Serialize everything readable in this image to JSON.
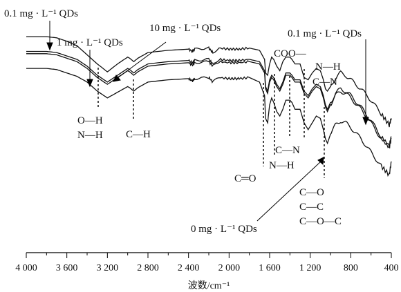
{
  "chart_data": {
    "type": "line",
    "xlabel": "波数/cm⁻¹",
    "xlim": [
      4000,
      400
    ],
    "x_ticks": [
      "4 000",
      "3 600",
      "3 200",
      "2 800",
      "2 400",
      "2 000",
      "1 600",
      "1 200",
      "800",
      "400"
    ],
    "series": [
      {
        "name": "0.1 mg · L⁻¹ QDs",
        "x": [
          4000,
          3900,
          3800,
          3700,
          3600,
          3500,
          3400,
          3300,
          3200,
          3100,
          3000,
          2980,
          2940,
          2900,
          2800,
          2600,
          2400,
          2360,
          2340,
          2200,
          2160,
          2100,
          2000,
          1950,
          1900,
          1800,
          1700,
          1650,
          1640,
          1620,
          1600,
          1580,
          1560,
          1530,
          1500,
          1470,
          1440,
          1400,
          1380,
          1350,
          1300,
          1260,
          1220,
          1180,
          1140,
          1100,
          1070,
          1050,
          1030,
          1000,
          950,
          900,
          850,
          800,
          700,
          600,
          500,
          420,
          400
        ],
        "y": [
          76,
          76,
          76,
          75.5,
          74,
          72,
          68,
          64,
          60.5,
          64,
          67,
          66.5,
          65,
          66.5,
          69,
          70,
          70.5,
          69.5,
          70.5,
          71,
          69,
          71,
          70.5,
          70.5,
          70.5,
          71,
          70,
          66,
          60,
          59,
          64,
          67,
          66,
          63,
          61,
          65,
          67,
          67,
          66,
          64,
          64,
          58,
          57,
          60,
          62,
          61,
          57,
          53,
          52,
          54,
          58,
          60,
          59,
          57,
          53,
          48,
          42,
          37,
          40
        ]
      },
      {
        "name": "1 mg · L⁻¹ QDs",
        "x": [
          4000,
          3900,
          3800,
          3700,
          3600,
          3500,
          3400,
          3300,
          3200,
          3100,
          3000,
          2980,
          2940,
          2900,
          2800,
          2600,
          2400,
          2360,
          2340,
          2200,
          2160,
          2100,
          2000,
          1950,
          1900,
          1800,
          1700,
          1650,
          1640,
          1620,
          1600,
          1580,
          1560,
          1530,
          1500,
          1470,
          1440,
          1400,
          1380,
          1350,
          1300,
          1260,
          1220,
          1180,
          1140,
          1100,
          1070,
          1050,
          1030,
          1000,
          950,
          900,
          850,
          800,
          700,
          600,
          500,
          420,
          400
        ],
        "y": [
          69.5,
          69.5,
          69.5,
          69,
          67.5,
          66,
          63,
          59,
          56,
          59,
          62,
          61.5,
          60,
          61.5,
          64,
          65,
          65.5,
          64.5,
          65.5,
          66,
          64,
          66,
          65.5,
          65.5,
          65.5,
          66,
          65,
          61,
          54,
          52,
          57,
          59,
          58,
          55,
          53,
          56,
          60,
          60,
          59,
          57,
          57,
          52,
          50,
          53,
          55,
          54,
          50,
          46,
          44,
          47,
          51,
          53,
          52,
          50,
          45,
          39,
          32,
          28,
          32
        ]
      },
      {
        "name": "10 mg · L⁻¹ QDs",
        "x": [
          4000,
          3900,
          3800,
          3700,
          3600,
          3500,
          3400,
          3300,
          3200,
          3100,
          3000,
          2980,
          2940,
          2900,
          2800,
          2600,
          2400,
          2360,
          2340,
          2200,
          2160,
          2100,
          2000,
          1950,
          1900,
          1800,
          1700,
          1650,
          1640,
          1620,
          1600,
          1580,
          1560,
          1530,
          1500,
          1470,
          1440,
          1400,
          1380,
          1350,
          1300,
          1260,
          1220,
          1180,
          1140,
          1100,
          1070,
          1050,
          1030,
          1000,
          950,
          900,
          850,
          800,
          700,
          600,
          500,
          420,
          400
        ],
        "y": [
          68.5,
          68.5,
          68.5,
          68,
          66.5,
          65,
          62,
          58,
          55,
          58,
          61,
          60.5,
          59,
          60.5,
          63,
          64,
          64.5,
          63.5,
          64.5,
          65,
          63,
          65,
          64.5,
          64.5,
          64.5,
          65,
          64,
          60,
          53,
          51,
          56,
          58,
          57,
          54,
          52,
          55,
          59,
          59,
          58,
          56,
          56,
          51,
          49,
          52,
          54,
          53,
          49,
          45,
          43,
          46,
          50,
          52,
          51,
          49,
          44,
          38,
          31,
          27,
          31
        ]
      },
      {
        "name": "0 mg · L⁻¹ QDs",
        "x": [
          4000,
          3900,
          3800,
          3700,
          3600,
          3500,
          3400,
          3300,
          3200,
          3100,
          3000,
          2980,
          2940,
          2900,
          2800,
          2600,
          2400,
          2360,
          2340,
          2200,
          2160,
          2100,
          2000,
          1950,
          1900,
          1800,
          1700,
          1650,
          1640,
          1620,
          1600,
          1580,
          1560,
          1530,
          1500,
          1470,
          1440,
          1400,
          1380,
          1350,
          1300,
          1260,
          1220,
          1180,
          1140,
          1100,
          1070,
          1050,
          1030,
          1000,
          950,
          900,
          850,
          800,
          700,
          600,
          500,
          420,
          400
        ],
        "y": [
          62,
          62,
          62,
          61.5,
          60,
          58.5,
          56,
          52,
          49,
          51.5,
          54,
          53.5,
          52,
          53.5,
          56,
          57,
          57.5,
          56.5,
          57.5,
          58,
          56,
          58,
          57.5,
          57.5,
          57.5,
          58,
          56,
          50,
          40,
          38,
          46,
          49,
          47,
          43,
          41,
          44,
          48,
          48,
          47,
          44,
          44,
          38,
          35,
          38,
          41,
          40,
          35,
          31,
          29,
          33,
          37,
          39,
          38,
          36,
          31,
          25,
          19,
          15,
          21
        ]
      }
    ],
    "annotations": {
      "series_labels": {
        "top_left": "0.1 mg · L⁻¹ QDs",
        "one": "1 mg · L⁻¹ QDs",
        "ten": "10 mg · L⁻¹ QDs",
        "top_right": "0.1 mg · L⁻¹ QDs",
        "zero": "0 mg · L⁻¹ QDs"
      },
      "bands": {
        "oh": "O—H",
        "nh1": "N—H",
        "ch": "C—H",
        "coo": "COO—",
        "nh2": "N—H",
        "cn1": "C—N",
        "cn2": "C—N",
        "nh3": "N—H",
        "co_double": "C═O",
        "co": "C—O",
        "cc": "C—C",
        "coc": "C—O—C"
      }
    },
    "grid": false,
    "legend": "none"
  }
}
